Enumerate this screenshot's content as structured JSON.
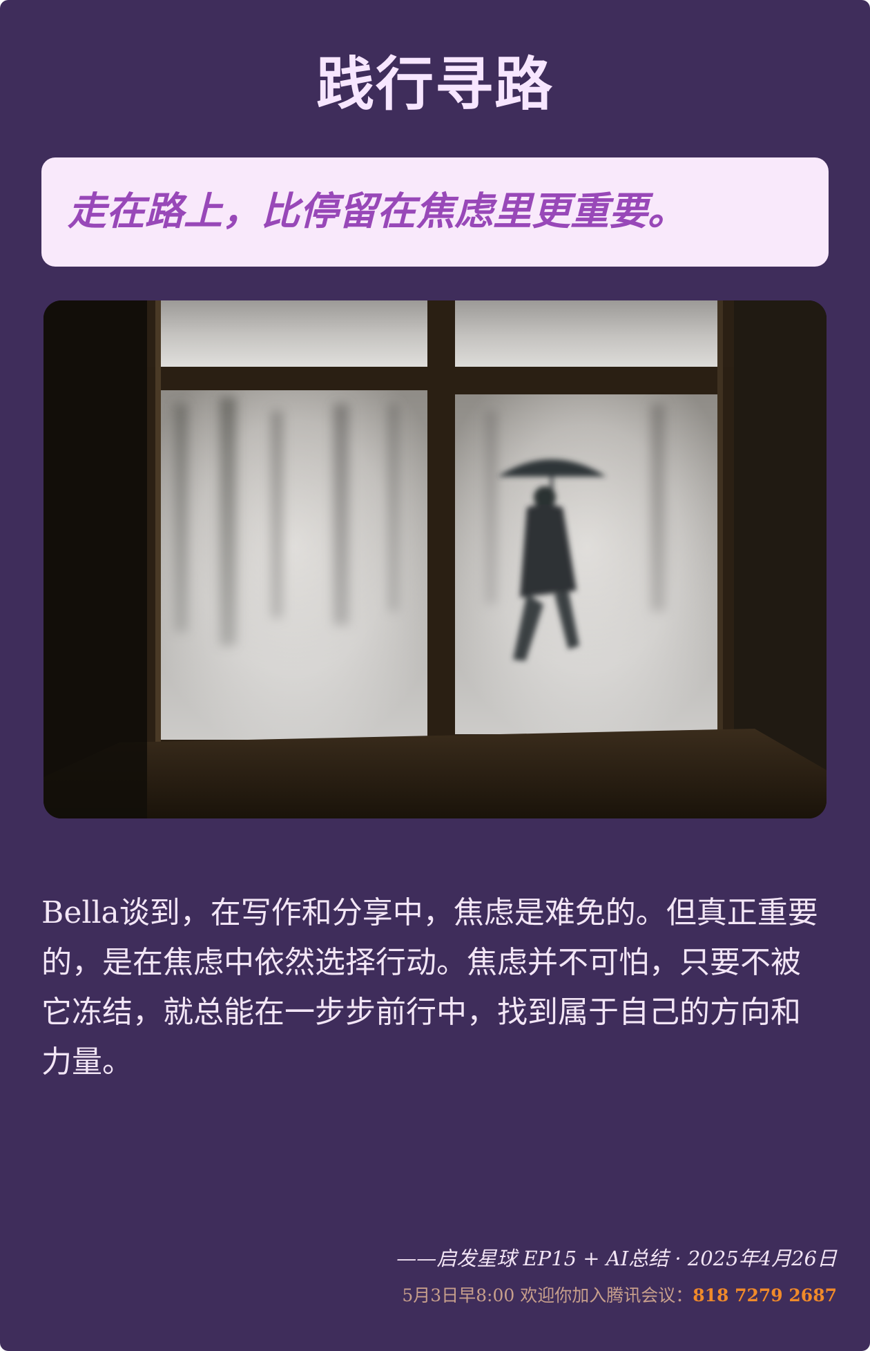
{
  "title": "践行寻路",
  "quote": "走在路上，比停留在焦虑里更重要。",
  "image": {
    "icon": "window-umbrella-illustration",
    "alt": ""
  },
  "body": "Bella谈到，在写作和分享中，焦虑是难免的。但真正重要的，是在焦虑中依然选择行动。焦虑并不可怕，只要不被它冻结，就总能在一步步前行中，找到属于自己的方向和力量。",
  "footer": {
    "attribution": "——启发星球 EP15 + AI总结 · 2025年4月26日",
    "meeting_prefix": "5月3日早8:00 欢迎你加入腾讯会议：",
    "meeting_number": "818 7279 2687"
  },
  "colors": {
    "background": "#3f2d5b",
    "title": "#f7e6ff",
    "quote_box": "#f9e9fb",
    "quote_text": "#9848b8",
    "meeting_number": "#f08a2a"
  }
}
